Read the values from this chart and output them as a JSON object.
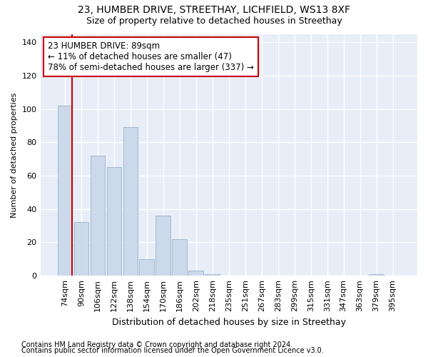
{
  "title1": "23, HUMBER DRIVE, STREETHAY, LICHFIELD, WS13 8XF",
  "title2": "Size of property relative to detached houses in Streethay",
  "xlabel": "Distribution of detached houses by size in Streethay",
  "ylabel": "Number of detached properties",
  "categories": [
    "74sqm",
    "90sqm",
    "106sqm",
    "122sqm",
    "138sqm",
    "154sqm",
    "170sqm",
    "186sqm",
    "202sqm",
    "218sqm",
    "235sqm",
    "251sqm",
    "267sqm",
    "283sqm",
    "299sqm",
    "315sqm",
    "331sqm",
    "347sqm",
    "363sqm",
    "379sqm",
    "395sqm"
  ],
  "values": [
    102,
    32,
    72,
    65,
    89,
    10,
    36,
    22,
    3,
    1,
    0,
    0,
    0,
    0,
    0,
    0,
    0,
    0,
    0,
    1,
    0
  ],
  "bar_color": "#ccd9ea",
  "bar_edge_color": "#9ab0cc",
  "highlight_line_color": "#cc0000",
  "annotation_text": "23 HUMBER DRIVE: 89sqm\n← 11% of detached houses are smaller (47)\n78% of semi-detached houses are larger (337) →",
  "annotation_box_color": "#ffffff",
  "annotation_box_edge_color": "#cc0000",
  "ylim": [
    0,
    145
  ],
  "yticks": [
    0,
    20,
    40,
    60,
    80,
    100,
    120,
    140
  ],
  "footer1": "Contains HM Land Registry data © Crown copyright and database right 2024.",
  "footer2": "Contains public sector information licensed under the Open Government Licence v3.0.",
  "fig_background_color": "#ffffff",
  "plot_background_color": "#e8eef8",
  "grid_color": "#ffffff",
  "title1_fontsize": 10,
  "title2_fontsize": 9,
  "xlabel_fontsize": 9,
  "ylabel_fontsize": 8,
  "tick_fontsize": 8,
  "footer_fontsize": 7,
  "annotation_fontsize": 8.5
}
